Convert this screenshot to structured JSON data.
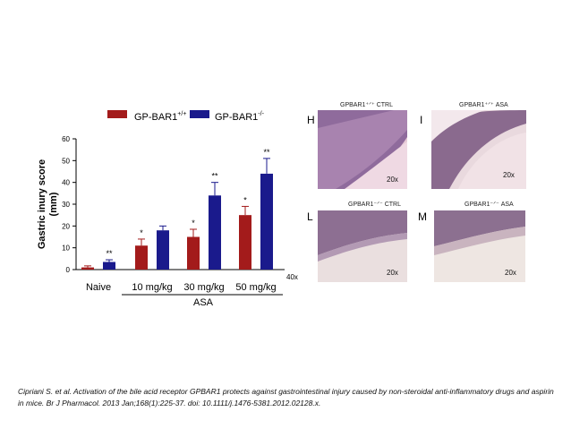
{
  "chart_data": {
    "type": "bar",
    "ylabel": "Gastric inury score",
    "yunit": "(mm)",
    "ylim": [
      0,
      60
    ],
    "yticks": [
      0,
      10,
      20,
      30,
      40,
      50,
      60
    ],
    "categories": [
      "Naive",
      "10 mg/kg",
      "30 mg/kg",
      "50 mg/kg"
    ],
    "group_label": "ASA",
    "series": [
      {
        "name_base": "GP-BAR1",
        "name_sup": "+/+",
        "color": "#a31b1b",
        "values": [
          1,
          11,
          15,
          25
        ],
        "errors": [
          0.7,
          3,
          3.5,
          4
        ],
        "marks": [
          "",
          "*",
          "*",
          "*"
        ]
      },
      {
        "name_base": "GP-BAR1",
        "name_sup": "-/-",
        "color": "#1a1a8c",
        "values": [
          3.5,
          18,
          34,
          44
        ],
        "errors": [
          1,
          2,
          6,
          7
        ],
        "marks": [
          "**",
          "",
          "**",
          "**"
        ]
      }
    ],
    "extra_label": "40x"
  },
  "panels": [
    {
      "id": "H",
      "title": "GPBAR1⁺ᐟ⁺ CTRL",
      "mag": "20x"
    },
    {
      "id": "I",
      "title": "GPBAR1⁺ᐟ⁺ ASA",
      "mag": "20x"
    },
    {
      "id": "L",
      "title": "GPBAR1⁻ᐟ⁻ CTRL",
      "mag": "20x"
    },
    {
      "id": "M",
      "title": "GPBAR1⁻ᐟ⁻ ASA",
      "mag": "20x"
    }
  ],
  "caption": "Cipriani S. et al. Activation of the bile acid receptor GPBAR1 protects against gastrointestinal  injury caused by non-steroidal anti-inflammatory drugs and aspirin in mice.  Br J Pharmacol. 2013 Jan;168(1):225-37. doi: 10.1111/j.1476-5381.2012.02128.x."
}
